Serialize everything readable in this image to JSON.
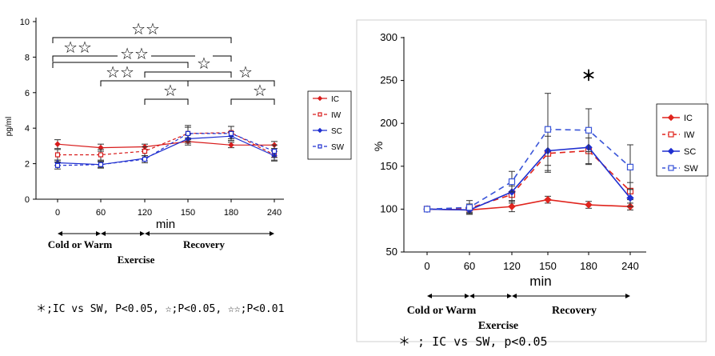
{
  "chart_data": [
    {
      "type": "line",
      "ylabel": "pg/ml",
      "xlabel": "min",
      "x": [
        "0",
        "60",
        "120",
        "150",
        "180",
        "240"
      ],
      "yticks": [
        "0",
        "2",
        "4",
        "6",
        "8",
        "10"
      ],
      "ylim": [
        0,
        10
      ],
      "series": [
        {
          "name": "IC",
          "values": [
            3.1,
            2.9,
            2.95,
            3.25,
            3.05,
            3.05
          ],
          "color": "#d81b1b",
          "marker": "diamond",
          "dash": "solid",
          "err": [
            0.25,
            0.2,
            0.15,
            0.2,
            0.15,
            0.2
          ]
        },
        {
          "name": "IW",
          "values": [
            2.5,
            2.5,
            2.7,
            3.7,
            3.75,
            2.5
          ],
          "color": "#d81b1b",
          "marker": "square",
          "dash": "dashed",
          "err": [
            0.3,
            0.3,
            0.25,
            0.35,
            0.35,
            0.35
          ]
        },
        {
          "name": "SC",
          "values": [
            2.05,
            1.95,
            2.3,
            3.4,
            3.55,
            2.45
          ],
          "color": "#1f2fd0",
          "marker": "diamond",
          "dash": "solid",
          "err": [
            0.15,
            0.15,
            0.15,
            0.25,
            0.25,
            0.25
          ]
        },
        {
          "name": "SW",
          "values": [
            1.9,
            1.95,
            2.25,
            3.7,
            3.7,
            2.7
          ],
          "color": "#1f2fd0",
          "marker": "square",
          "dash": "dashed",
          "err": [
            0.2,
            0.2,
            0.2,
            0.45,
            0.4,
            0.35
          ]
        }
      ],
      "significance_brackets": [
        {
          "from": "0",
          "to": "180",
          "level": 9.2,
          "mark": "☆☆"
        },
        {
          "from": "0",
          "to": "180",
          "level": 8.2,
          "mark": "☆☆"
        },
        {
          "from": "0",
          "to": "150",
          "level": 7.5,
          "mark": "☆☆"
        },
        {
          "from": "60",
          "to": "150",
          "level": 6.5,
          "mark": "☆☆"
        },
        {
          "from": "120",
          "to": "180",
          "level": 7.0,
          "mark": "☆"
        },
        {
          "from": "150",
          "to": "240",
          "level": 6.5,
          "mark": "☆"
        },
        {
          "from": "120",
          "to": "150",
          "level": 5.5,
          "mark": "☆"
        },
        {
          "from": "180",
          "to": "240",
          "level": 5.5,
          "mark": "☆"
        }
      ],
      "phases": [
        {
          "label": "Cold or Warm",
          "from": "0",
          "to": "60"
        },
        {
          "label": "Exercise",
          "from": "60",
          "to": "120"
        },
        {
          "label": "Recovery",
          "from": "120",
          "to": "240"
        }
      ],
      "footnote": "＊;IC vs SW, P<0.05, ☆;P<0.05, ☆☆;P<0.01"
    },
    {
      "type": "line",
      "ylabel": "%",
      "xlabel": "min",
      "x": [
        "0",
        "60",
        "120",
        "150",
        "180",
        "240"
      ],
      "yticks": [
        "50",
        "100",
        "150",
        "200",
        "250",
        "300"
      ],
      "ylim": [
        50,
        300
      ],
      "series": [
        {
          "name": "IC",
          "values": [
            100,
            99,
            103,
            111,
            105,
            103
          ],
          "color": "#e0241d",
          "marker": "diamond",
          "dash": "solid",
          "err": [
            0,
            4,
            6,
            4,
            4,
            4
          ]
        },
        {
          "name": "IW",
          "values": [
            100,
            101,
            117,
            165,
            168,
            121
          ],
          "color": "#e0241d",
          "marker": "square",
          "dash": "dashed",
          "err": [
            0,
            5,
            10,
            20,
            15,
            10
          ]
        },
        {
          "name": "SC",
          "values": [
            100,
            99,
            120,
            168,
            172,
            113
          ],
          "color": "#1f2fd0",
          "marker": "diamond",
          "dash": "solid",
          "err": [
            0,
            5,
            10,
            25,
            20,
            10
          ]
        },
        {
          "name": "SW",
          "values": [
            100,
            102,
            132,
            193,
            192,
            149
          ],
          "color": "#3a55d8",
          "marker": "square",
          "dash": "dashed",
          "err": [
            0,
            8,
            12,
            42,
            25,
            26
          ]
        }
      ],
      "annotations": [
        {
          "x": "180",
          "text": "＊"
        }
      ],
      "phases": [
        {
          "label": "Cold or Warm",
          "from": "0",
          "to": "60"
        },
        {
          "label": "Exercise",
          "from": "60",
          "to": "120"
        },
        {
          "label": "Recovery",
          "from": "120",
          "to": "240"
        }
      ],
      "footnote": "＊ ; IC vs SW, p<0.05"
    }
  ]
}
